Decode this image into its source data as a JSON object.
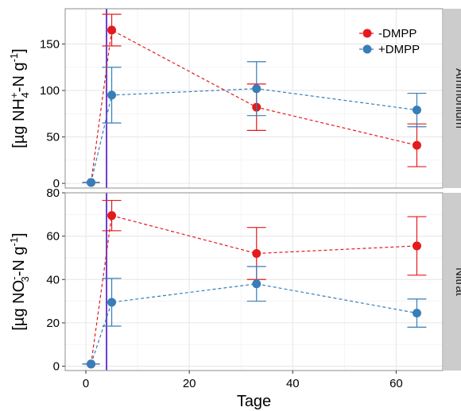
{
  "chart_data": {
    "type": "scatter",
    "xlabel": "Tage",
    "x_ticks": [
      0,
      20,
      40,
      60
    ],
    "xlim": [
      -4,
      69
    ],
    "vline_x": 4,
    "legend": {
      "placement": "top-right",
      "entries": [
        "-DMPP",
        "+DMPP"
      ]
    },
    "colors": {
      "minus_dmpp": "#e41a1c",
      "plus_dmpp": "#377eb8",
      "vline": "#6a3dcc"
    },
    "panels": [
      {
        "strip": "Ammonium",
        "ylabel": {
          "pre": "[µg NH",
          "sub": "4",
          "sup": "+",
          "mid": "-N g",
          "sup2": "-1",
          "post": "]"
        },
        "ylim": [
          -5,
          188
        ],
        "y_ticks": [
          0,
          50,
          100,
          150
        ],
        "series": [
          {
            "name": "-DMPP",
            "x": [
              1,
              5,
              33,
              64
            ],
            "y": [
              1,
              165,
              82,
              41
            ],
            "err": [
              0,
              17,
              25,
              23
            ]
          },
          {
            "name": "+DMPP",
            "x": [
              1,
              5,
              33,
              64
            ],
            "y": [
              1,
              95,
              102,
              79
            ],
            "err": [
              0,
              30,
              29,
              18
            ]
          }
        ]
      },
      {
        "strip": "Nitrat",
        "ylabel": {
          "pre": "[µg NO",
          "sub": "3",
          "sup": "-",
          "mid": "-N g",
          "sup2": "-1",
          "post": "]"
        },
        "ylim": [
          -2,
          80
        ],
        "y_ticks": [
          0,
          20,
          40,
          60,
          80
        ],
        "series": [
          {
            "name": "-DMPP",
            "x": [
              1,
              5,
              33,
              64
            ],
            "y": [
              1,
              69.5,
              52,
              55.5
            ],
            "err": [
              0,
              7,
              12,
              13.5
            ]
          },
          {
            "name": "+DMPP",
            "x": [
              1,
              5,
              33,
              64
            ],
            "y": [
              1,
              29.5,
              38,
              24.5
            ],
            "err": [
              0,
              11,
              8,
              6.5
            ]
          }
        ]
      }
    ]
  }
}
